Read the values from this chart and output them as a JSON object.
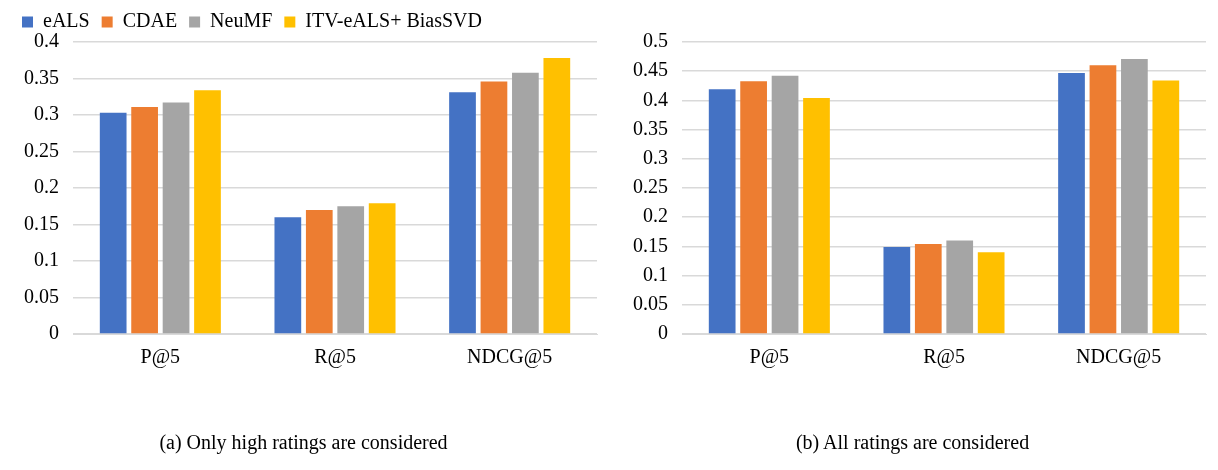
{
  "chart_data": [
    {
      "type": "bar",
      "title": "(a) Only high ratings are considered",
      "categories": [
        "P@5",
        "R@5",
        "NDCG@5"
      ],
      "series": [
        {
          "name": "eALS",
          "color": "#4472c4",
          "values": [
            0.303,
            0.16,
            0.331
          ]
        },
        {
          "name": "CDAE",
          "color": "#ed7d31",
          "values": [
            0.311,
            0.17,
            0.346
          ]
        },
        {
          "name": "NeuMF",
          "color": "#a5a5a5",
          "values": [
            0.317,
            0.175,
            0.358
          ]
        },
        {
          "name": "ITV-eALS+ BiasSVD",
          "color": "#ffc000",
          "values": [
            0.334,
            0.179,
            0.378
          ]
        }
      ],
      "ylim": [
        0,
        0.4
      ],
      "yticks": [
        0,
        0.05,
        0.1,
        0.15,
        0.2,
        0.25,
        0.3,
        0.35,
        0.4
      ],
      "grid": "y",
      "legend": "top left"
    },
    {
      "type": "bar",
      "title": "(b) All ratings are considered",
      "categories": [
        "P@5",
        "R@5",
        "NDCG@5"
      ],
      "series": [
        {
          "color": "#4472c4",
          "values": [
            0.419,
            0.149,
            0.447
          ]
        },
        {
          "color": "#ed7d31",
          "values": [
            0.433,
            0.154,
            0.46
          ]
        },
        {
          "color": "#a5a5a5",
          "values": [
            0.442,
            0.16,
            0.471
          ]
        },
        {
          "color": "#ffc000",
          "values": [
            0.404,
            0.14,
            0.434
          ]
        }
      ],
      "ylim": [
        0,
        0.5
      ],
      "yticks": [
        0,
        0.05,
        0.1,
        0.15,
        0.2,
        0.25,
        0.3,
        0.35,
        0.4,
        0.45,
        0.5
      ],
      "grid": "y"
    }
  ]
}
